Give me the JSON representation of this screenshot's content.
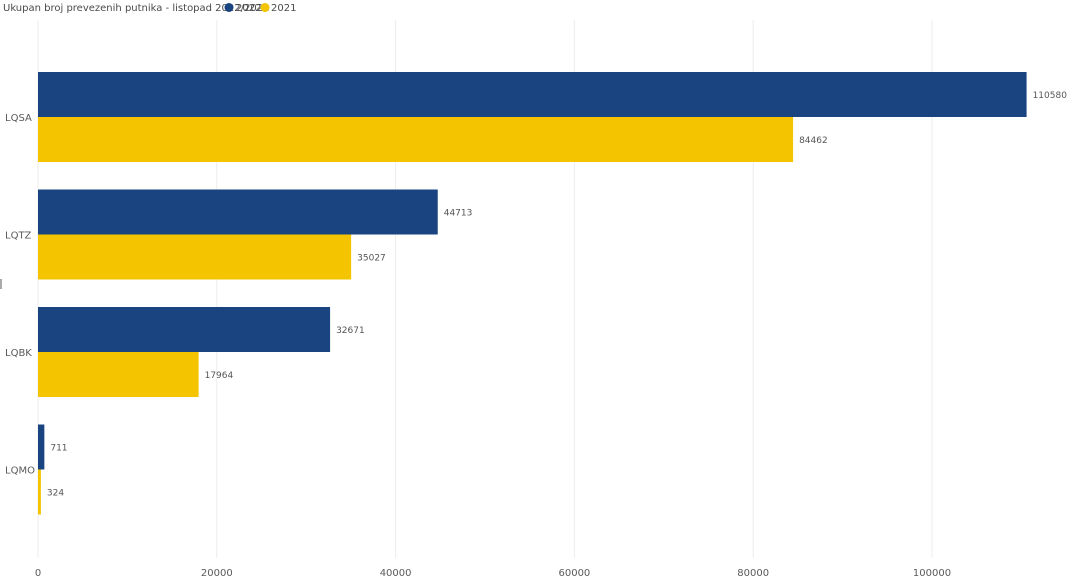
{
  "chart_data": {
    "type": "bar",
    "orientation": "horizontal",
    "title": "Ukupan broj prevezenih putnika - listopad 2022/2021",
    "categories": [
      "LQSA",
      "LQTZ",
      "LQBK",
      "LQMO"
    ],
    "series": [
      {
        "name": "2022",
        "color": "#1a4480",
        "values": [
          110580,
          44713,
          32671,
          711
        ]
      },
      {
        "name": "2021",
        "color": "#f5c400",
        "values": [
          84462,
          35027,
          17964,
          324
        ]
      }
    ],
    "x_ticks": [
      "0",
      "20000",
      "40000",
      "60000",
      "80000",
      "100000"
    ],
    "xlim": [
      0,
      115000
    ],
    "grid": true,
    "legend_position": "top"
  }
}
